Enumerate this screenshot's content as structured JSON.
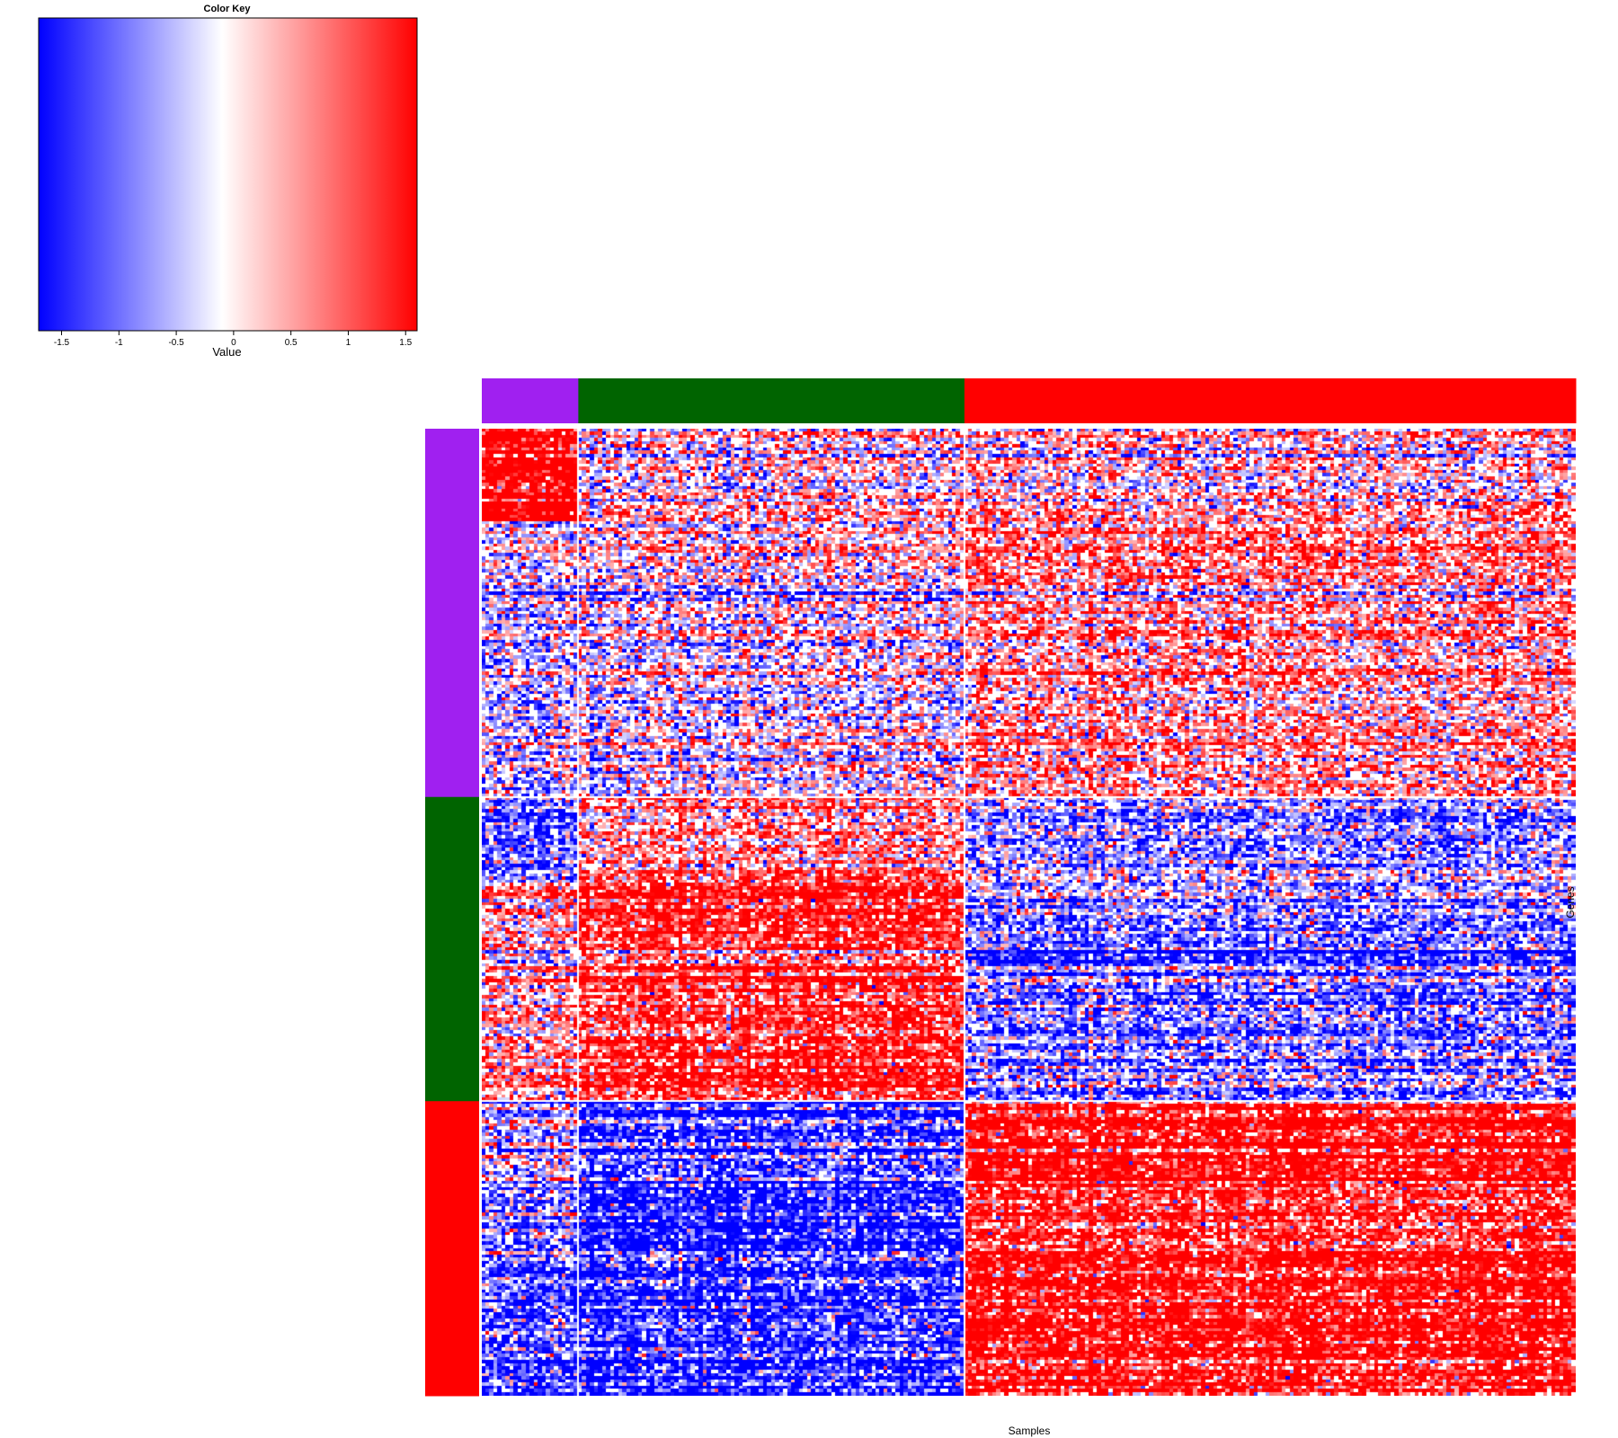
{
  "chart_data": {
    "type": "heatmap",
    "color_key": {
      "title": "Color Key",
      "xlabel": "Value",
      "ticks": [
        "-1.5",
        "-1",
        "-0.5",
        "0",
        "0.5",
        "1",
        "1.5"
      ],
      "tick_values": [
        -1.5,
        -1,
        -0.5,
        0,
        0.5,
        1,
        1.5
      ],
      "range": [
        -1.7,
        1.6
      ],
      "low_color": "#0000ff",
      "mid_color": "#ffffff",
      "high_color": "#ff0000",
      "mid_value": -0.1
    },
    "xlabel": "Samples",
    "ylabel": "Genes",
    "column_groups": [
      {
        "color": "#a020f0",
        "n": 24
      },
      {
        "color": "#006400",
        "n": 96
      },
      {
        "color": "#ff0000",
        "n": 152
      }
    ],
    "row_groups": [
      {
        "color": "#a020f0",
        "n": 115
      },
      {
        "color": "#006400",
        "n": 95
      },
      {
        "color": "#ff0000",
        "n": 92
      }
    ],
    "value_pattern": [
      [
        [
          0.95,
          0,
          0.0
        ],
        [
          -0.05,
          0.2,
          0.05
        ],
        [
          0.0,
          0.05,
          0.0
        ]
      ],
      [
        [
          -0.2,
          0.7,
          -0.55
        ],
        [
          -0.05,
          0.2,
          0.05
        ],
        [
          0.25,
          0.0,
          0.0
        ]
      ],
      [
        [
          -0.5,
          -0.45,
          -0.15
        ],
        [
          0.35,
          0.25,
          0.3
        ],
        [
          -0.3,
          -0.1,
          -0.1
        ]
      ],
      [
        [
          0.25,
          0.0,
          -0.1
        ],
        [
          0.75,
          0,
          0.0
        ],
        [
          -0.4,
          0.2,
          0.0
        ]
      ],
      [
        [
          -0.35,
          0.1,
          -0.05
        ],
        [
          -0.8,
          -0.2,
          -0.1
        ],
        [
          0.75,
          0.0,
          0.05
        ]
      ],
      [
        [
          -0.7,
          -0.1,
          -0.05
        ],
        [
          -0.75,
          -0.1,
          -0.1
        ],
        [
          0.85,
          0.0,
          0.1
        ]
      ],
      [
        [
          0.75,
          0.0,
          0.0
        ],
        [
          0.55,
          0.0,
          0.0
        ],
        [
          -0.7,
          0.0,
          0.0
        ]
      ]
    ],
    "row_bands": [
      0,
      29,
      115,
      0.6,
      0.4,
      0.8,
      0.2
    ]
  }
}
